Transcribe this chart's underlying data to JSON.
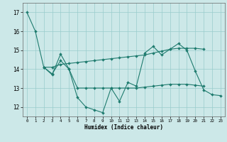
{
  "xlabel": "Humidex (Indice chaleur)",
  "background_color": "#cce8e8",
  "grid_color": "#99cccc",
  "line_color": "#1e7b6e",
  "markersize": 2.0,
  "linewidth": 0.8,
  "xlim": [
    -0.5,
    23.5
  ],
  "ylim": [
    11.5,
    17.5
  ],
  "xticks": [
    0,
    1,
    2,
    3,
    4,
    5,
    6,
    7,
    8,
    9,
    10,
    11,
    12,
    13,
    14,
    15,
    16,
    17,
    18,
    19,
    20,
    21,
    22,
    23
  ],
  "yticks": [
    12,
    13,
    14,
    15,
    16,
    17
  ],
  "series": [
    {
      "x": [
        0,
        1,
        2,
        3,
        4,
        5,
        6,
        7,
        8,
        9,
        10,
        11,
        12,
        13,
        14,
        15,
        16,
        17,
        18,
        19,
        20,
        21,
        22,
        23
      ],
      "y": [
        17,
        16,
        14.1,
        13.7,
        14.8,
        14.0,
        12.5,
        12.0,
        11.85,
        11.7,
        13.0,
        12.3,
        13.3,
        13.1,
        14.85,
        15.2,
        14.75,
        15.05,
        15.35,
        15.0,
        13.9,
        12.9,
        12.65,
        12.6
      ]
    },
    {
      "x": [
        2,
        3,
        4,
        5,
        6,
        7,
        8,
        9,
        10,
        11,
        12,
        13,
        14,
        15,
        16,
        17,
        18,
        19,
        20,
        21
      ],
      "y": [
        14.1,
        14.1,
        14.25,
        14.3,
        14.35,
        14.4,
        14.45,
        14.5,
        14.55,
        14.6,
        14.65,
        14.7,
        14.75,
        14.85,
        14.95,
        15.05,
        15.1,
        15.1,
        15.1,
        15.05
      ]
    },
    {
      "x": [
        2,
        3,
        4,
        5,
        6,
        7,
        8,
        9,
        10,
        11,
        12,
        13,
        14,
        15,
        16,
        17,
        18,
        19,
        20,
        21
      ],
      "y": [
        14.1,
        13.75,
        14.45,
        14.0,
        13.0,
        13.0,
        13.0,
        13.0,
        13.0,
        13.0,
        13.0,
        13.0,
        13.05,
        13.1,
        13.15,
        13.2,
        13.2,
        13.2,
        13.15,
        13.1
      ]
    }
  ]
}
